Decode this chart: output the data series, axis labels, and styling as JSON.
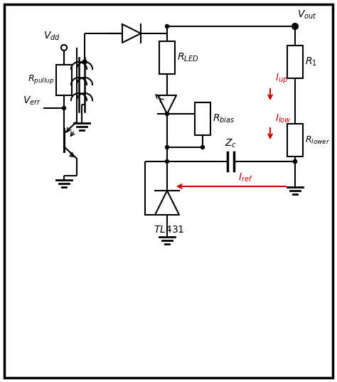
{
  "background_color": "#ffffff",
  "line_color": "#000000",
  "red_color": "#cc0000",
  "border_lw": 2.0
}
